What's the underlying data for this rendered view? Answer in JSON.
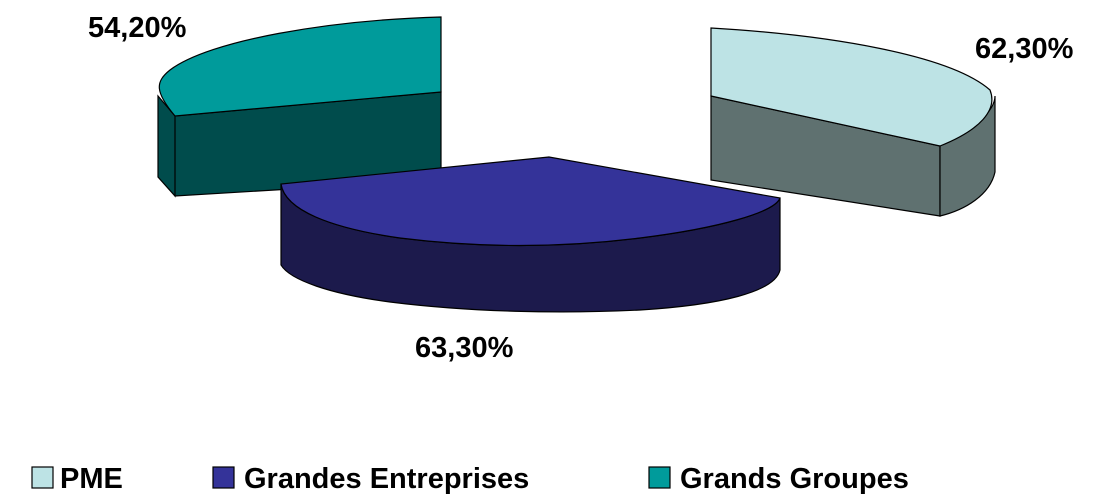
{
  "chart_data": {
    "type": "pie",
    "style": "3d-exploded",
    "categories": [
      "PME",
      "Grandes Entreprises",
      "Grands Groupes"
    ],
    "values_labels": [
      "62,30%",
      "63,30%",
      "54,20%"
    ],
    "values": [
      62.3,
      63.3,
      54.2
    ],
    "legend_placement": "bottom",
    "colors": {
      "PME": {
        "top": "#bde3e5",
        "side": "#5f7170"
      },
      "Grandes Entreprises": {
        "top": "#343399",
        "side": "#1c1a4c"
      },
      "Grands Groupes": {
        "top": "#009b9b",
        "side": "#004c4c"
      }
    }
  }
}
